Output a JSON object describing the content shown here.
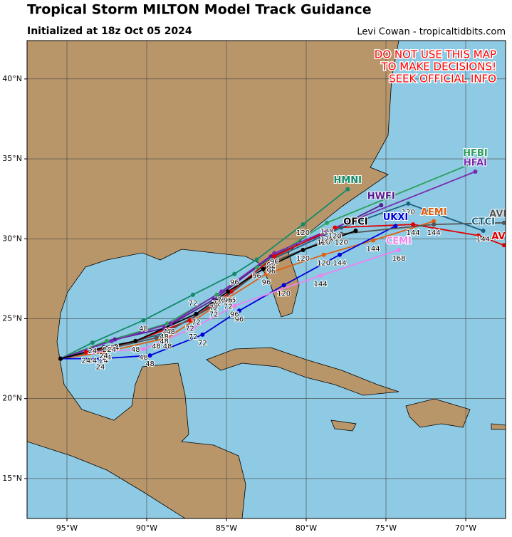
{
  "chart_data": {
    "type": "track_map",
    "title": "Tropical Storm MILTON Model Track Guidance",
    "subtitle": "Initialized at 18z Oct 05 2024",
    "credit": "Levi Cowan - tropicaltidbits.com",
    "warning": [
      "DO NOT USE THIS MAP",
      "TO MAKE DECISIONS!",
      "SEEK OFFICIAL INFO"
    ],
    "xlim": [
      -97.5,
      -67.5
    ],
    "ylim": [
      12.5,
      42.4
    ],
    "grid": true,
    "xticks": [
      {
        "value": -95,
        "label": "95°W"
      },
      {
        "value": -90,
        "label": "90°W"
      },
      {
        "value": -85,
        "label": "85°W"
      },
      {
        "value": -80,
        "label": "80°W"
      },
      {
        "value": -75,
        "label": "75°W"
      },
      {
        "value": -70,
        "label": "70°W"
      }
    ],
    "yticks": [
      {
        "value": 15,
        "label": "15°N"
      },
      {
        "value": 20,
        "label": "20°N"
      },
      {
        "value": 25,
        "label": "25°N"
      },
      {
        "value": 30,
        "label": "30°N"
      },
      {
        "value": 35,
        "label": "35°N"
      },
      {
        "value": 40,
        "label": "40°N"
      }
    ],
    "series": [
      {
        "name": "HMNI",
        "color": "#138a6a",
        "x": [
          -95.4,
          -93.4,
          -90.2,
          -87.1,
          -84.5,
          -83.1,
          -80.2,
          -77.4
        ],
        "y": [
          22.5,
          23.5,
          24.9,
          26.5,
          27.8,
          28.7,
          30.9,
          33.1
        ],
        "hours": [
          null,
          24,
          48,
          72,
          96,
          null,
          120,
          null
        ]
      },
      {
        "name": "HFBI",
        "color": "#2ca05a",
        "x": [
          -95.4,
          -92.5,
          -88.7,
          -85.6,
          -83.1,
          -78.7,
          -69.4
        ],
        "y": [
          22.5,
          23.6,
          24.7,
          26.5,
          28.2,
          31.0,
          34.8
        ],
        "hours": [
          null,
          24,
          48,
          72,
          96,
          120,
          null
        ]
      },
      {
        "name": "HWFI",
        "color": "#5a1a90",
        "x": [
          -95.4,
          -92.0,
          -88.9,
          -85.8,
          -82.2,
          -78.9,
          -75.3
        ],
        "y": [
          22.5,
          23.7,
          24.4,
          26.2,
          28.9,
          30.3,
          32.1
        ],
        "hours": [
          null,
          24,
          48,
          72,
          96,
          120,
          null
        ]
      },
      {
        "name": "HFAI",
        "color": "#7a2ab0",
        "x": [
          -95.4,
          -92.2,
          -88.5,
          -85.3,
          -82.0,
          -78.7,
          -69.4
        ],
        "y": [
          22.5,
          23.6,
          24.7,
          26.7,
          29.1,
          30.5,
          34.2
        ],
        "hours": [
          null,
          24,
          48,
          72,
          96,
          120,
          null
        ]
      },
      {
        "name": "CTCI",
        "color": "#1f6080",
        "x": [
          -95.4,
          -92.5,
          -88.9,
          -85.8,
          -82.2,
          -77.8,
          -73.6,
          -68.9
        ],
        "y": [
          22.5,
          23.1,
          24.1,
          25.8,
          28.7,
          30.7,
          32.2,
          30.5
        ],
        "hours": [
          null,
          24,
          48,
          72,
          96,
          null,
          120,
          144
        ]
      },
      {
        "name": "AEMI",
        "color": "#e06010",
        "x": [
          -95.4,
          -92.7,
          -88.7,
          -84.9,
          -82.5,
          -78.9,
          -75.8,
          -72.0
        ],
        "y": [
          22.5,
          22.9,
          23.8,
          26.3,
          27.8,
          29.0,
          29.9,
          31.1
        ],
        "hours": [
          null,
          24,
          48,
          72,
          96,
          120,
          144,
          null
        ]
      },
      {
        "name": "UKXI",
        "color": "#0000dd",
        "x": [
          -95.4,
          -92.9,
          -89.8,
          -86.5,
          -84.2,
          -81.4,
          -77.9,
          -74.4
        ],
        "y": [
          22.5,
          22.5,
          22.7,
          24.0,
          25.5,
          27.1,
          29.0,
          30.8
        ],
        "hours": [
          null,
          24,
          48,
          72,
          96,
          120,
          144,
          null
        ]
      },
      {
        "name": "CEMI",
        "color": "#ee82ee",
        "x": [
          -95.4,
          -93.4,
          -90.2,
          -87.1,
          -84.5,
          -79.1,
          -74.2
        ],
        "y": [
          22.5,
          22.9,
          23.1,
          24.4,
          25.8,
          27.7,
          29.3
        ],
        "hours": [
          null,
          24,
          48,
          72,
          96,
          144,
          168
        ]
      },
      {
        "name": "AVNI",
        "color": "#e00000",
        "x": [
          -95.4,
          -93.8,
          -90.7,
          -87.3,
          -84.7,
          -82.0,
          -78.2,
          -73.3,
          -69.2,
          -67.6
        ],
        "y": [
          22.5,
          22.9,
          23.6,
          24.9,
          26.7,
          28.9,
          30.7,
          30.9,
          30.2,
          29.6
        ],
        "hours": [
          null,
          24,
          48,
          72,
          96,
          null,
          120,
          144,
          null,
          null
        ]
      },
      {
        "name": "AVNO",
        "color": "#555555",
        "x": [
          -95.4,
          -92.5,
          -89.4,
          -85.8,
          -82.2,
          -77.8,
          -72.0,
          -67.6
        ],
        "y": [
          22.5,
          23.1,
          23.8,
          25.8,
          28.5,
          30.3,
          30.9,
          31.0
        ],
        "hours": [
          null,
          24,
          48,
          72,
          96,
          120,
          144,
          null
        ]
      },
      {
        "name": "OFCI",
        "color": "#000000",
        "x": [
          -95.4,
          -92.7,
          -90.7,
          -86.9,
          -84.9,
          -82.7,
          -80.2,
          -76.9
        ],
        "y": [
          22.5,
          23.2,
          23.6,
          25.3,
          26.7,
          28.1,
          29.3,
          30.5
        ],
        "hours": [
          null,
          24,
          48,
          72,
          96,
          null,
          120,
          null
        ]
      }
    ]
  }
}
